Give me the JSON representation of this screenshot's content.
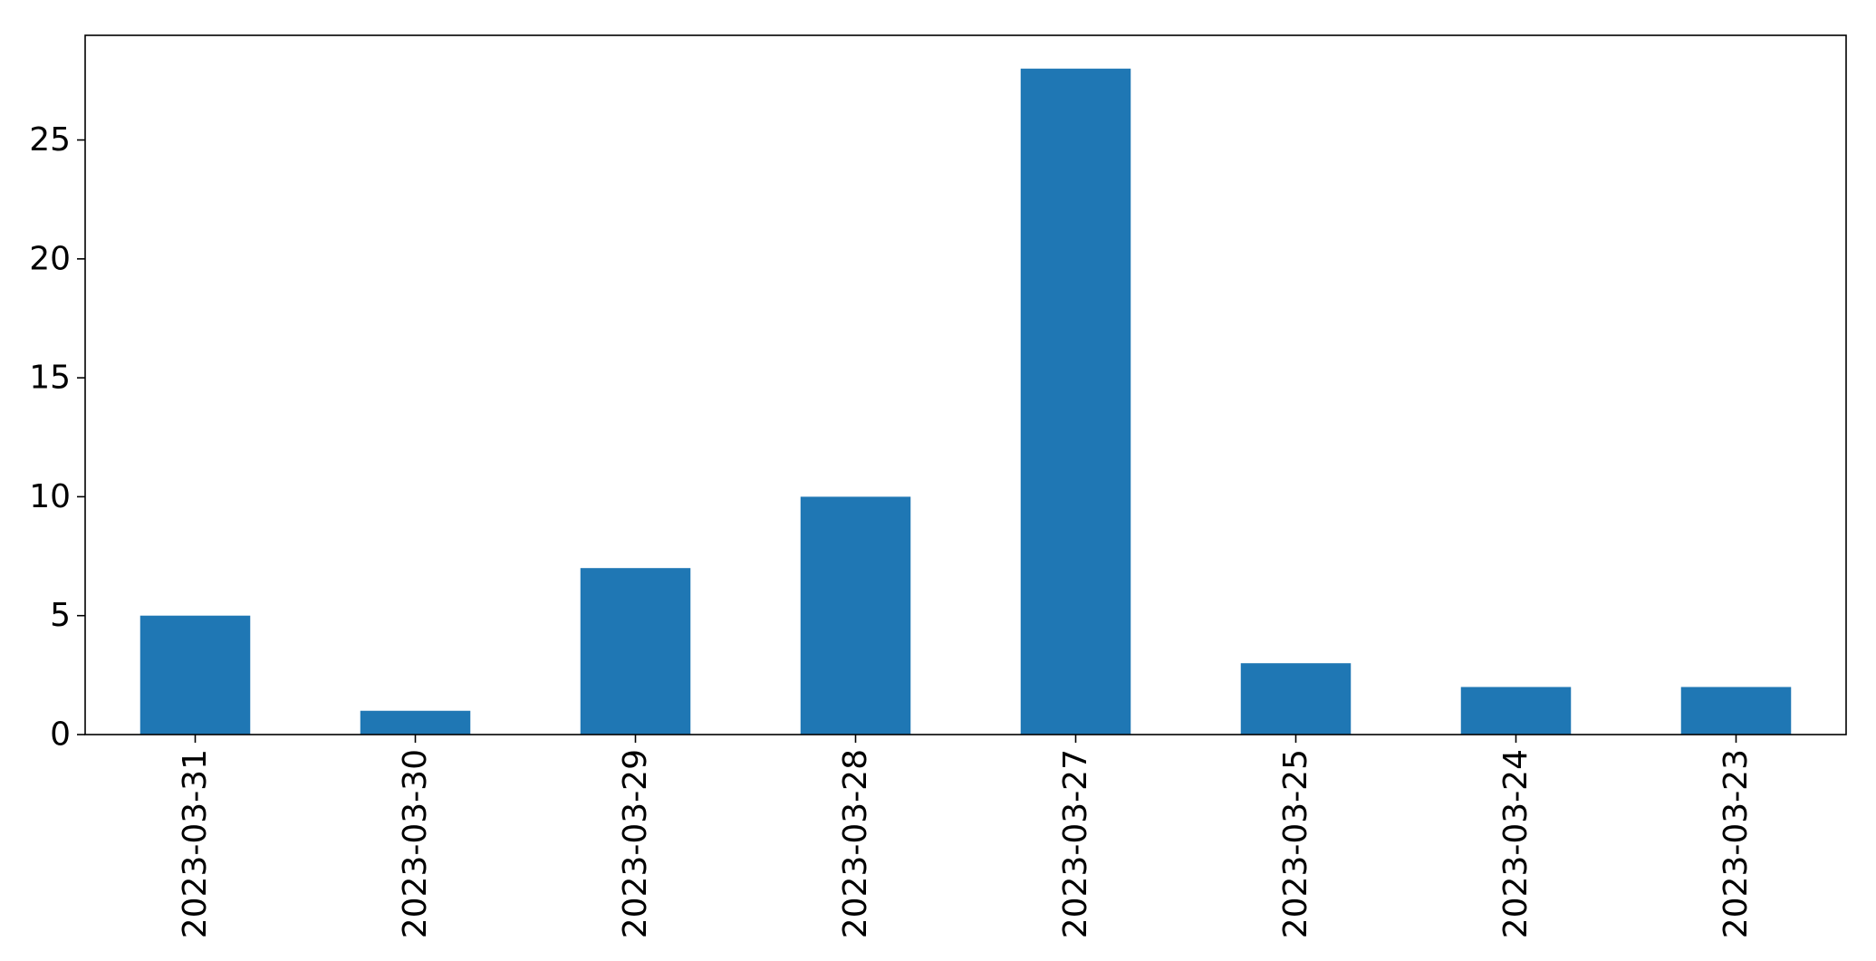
{
  "chart_data": {
    "type": "bar",
    "title": "",
    "xlabel": "",
    "ylabel": "",
    "categories": [
      "2023-03-31",
      "2023-03-30",
      "2023-03-29",
      "2023-03-28",
      "2023-03-27",
      "2023-03-25",
      "2023-03-24",
      "2023-03-23"
    ],
    "values": [
      5,
      1,
      7,
      10,
      28,
      3,
      2,
      2
    ],
    "ylim": [
      0,
      29.4
    ],
    "yticks": [
      0,
      5,
      10,
      15,
      20,
      25
    ],
    "grid": false,
    "legend": "none",
    "bar_color": "#1f77b4"
  }
}
